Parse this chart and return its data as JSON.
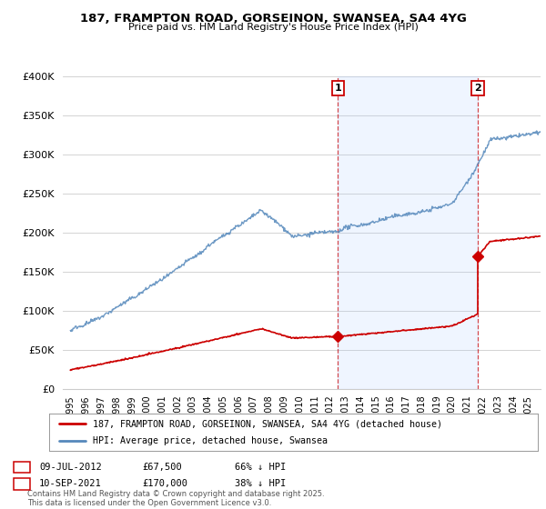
{
  "title": "187, FRAMPTON ROAD, GORSEINON, SWANSEA, SA4 4YG",
  "subtitle": "Price paid vs. HM Land Registry's House Price Index (HPI)",
  "ylim": [
    0,
    400000
  ],
  "xlim_start": 1994.5,
  "xlim_end": 2025.8,
  "sale1_date": "09-JUL-2012",
  "sale1_price": 67500,
  "sale1_label": "66% ↓ HPI",
  "sale1_x": 2012.52,
  "sale2_date": "10-SEP-2021",
  "sale2_price": 170000,
  "sale2_label": "38% ↓ HPI",
  "sale2_x": 2021.69,
  "legend_line1": "187, FRAMPTON ROAD, GORSEINON, SWANSEA, SA4 4YG (detached house)",
  "legend_line2": "HPI: Average price, detached house, Swansea",
  "footer": "Contains HM Land Registry data © Crown copyright and database right 2025.\nThis data is licensed under the Open Government Licence v3.0.",
  "line_red": "#cc0000",
  "line_blue": "#5588bb",
  "shade_blue": "#ddeeff",
  "bg_color": "#ffffff",
  "grid_color": "#cccccc",
  "annotation1_num": "1",
  "annotation2_num": "2"
}
